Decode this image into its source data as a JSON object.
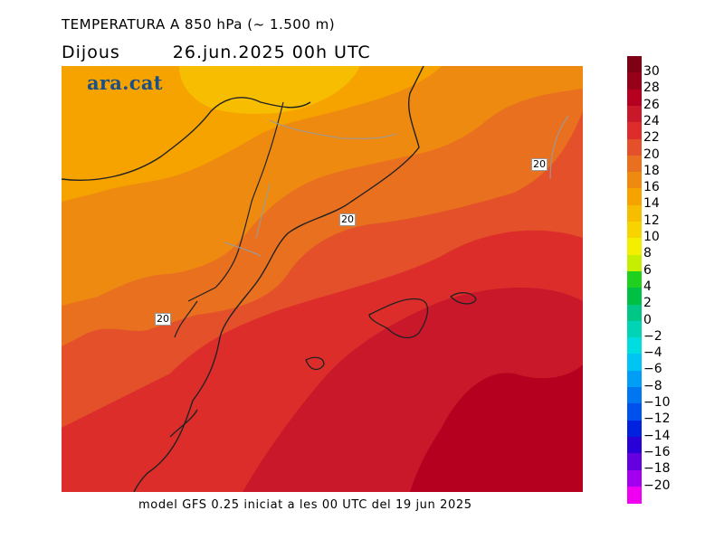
{
  "header": {
    "title": "TEMPERATURA A 850 hPa (~ 1.500 m)",
    "day": "Dijous",
    "date": "26.jun.2025 00h UTC"
  },
  "logo": "ara.cat",
  "footer": "model GFS 0.25 iniciat a les 00 UTC del 19 jun 2025",
  "contour_labels": [
    "20",
    "20",
    "20"
  ],
  "colorbar": {
    "labels": [
      "30",
      "28",
      "26",
      "24",
      "22",
      "20",
      "18",
      "16",
      "14",
      "12",
      "10",
      "8",
      "6",
      "4",
      "2",
      "0",
      "−2",
      "−4",
      "−6",
      "−8",
      "−10",
      "−12",
      "−14",
      "−16",
      "−18",
      "−20"
    ],
    "colors": [
      "#7d0015",
      "#960018",
      "#b5001f",
      "#c8182a",
      "#dd2d2a",
      "#e3502a",
      "#e8701f",
      "#ef8a10",
      "#f6a300",
      "#f7bd00",
      "#f7d400",
      "#f4ee00",
      "#c6ee00",
      "#1fd01f",
      "#00c044",
      "#00c786",
      "#00d4b4",
      "#00dde0",
      "#00c5f2",
      "#009ef5",
      "#0077f0",
      "#0050ee",
      "#0022e0",
      "#2a00d8",
      "#6400e0",
      "#a300f2",
      "#f000f0"
    ]
  },
  "map": {
    "region": "Catalunya i Mediterrània occidental",
    "temperature_field": "850 hPa",
    "contour_value": 20
  }
}
